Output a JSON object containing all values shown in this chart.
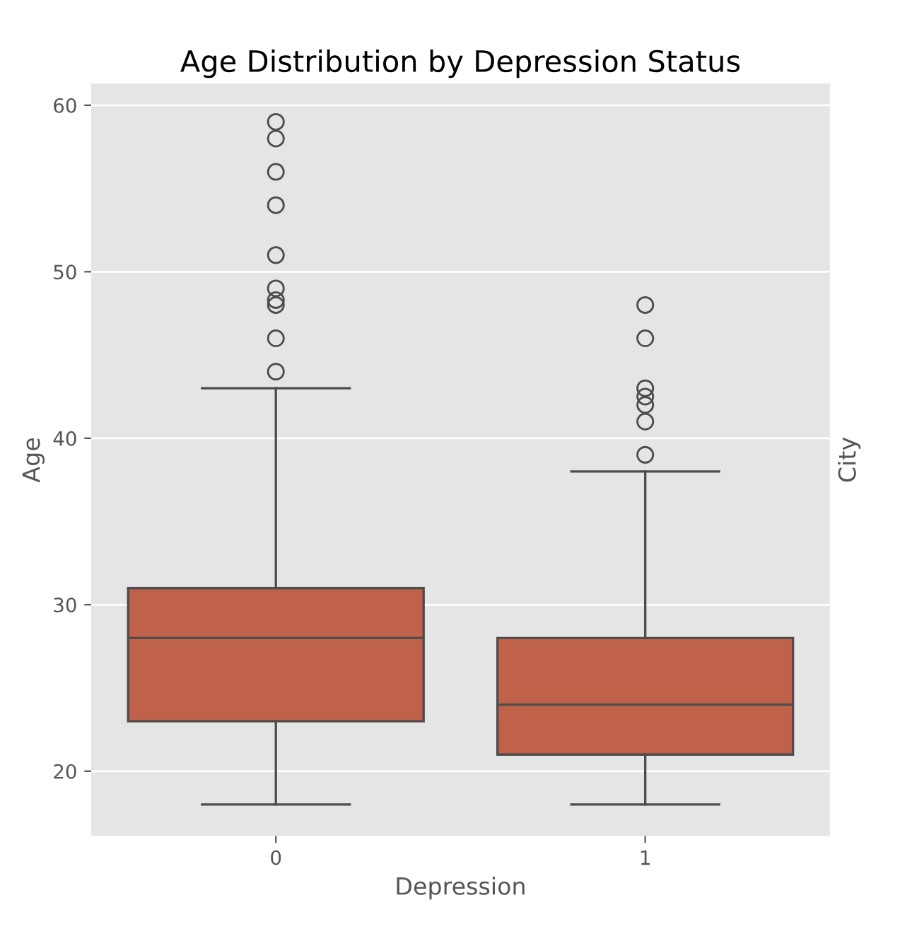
{
  "chart_data": {
    "type": "box",
    "title": "Age Distribution by Depression Status",
    "xlabel": "Depression",
    "ylabel": "Age",
    "y2label": "City",
    "categories": [
      "0",
      "1"
    ],
    "color": "#c0614a",
    "boxes": [
      {
        "low": 18,
        "q1": 23,
        "median": 28,
        "q3": 31,
        "high": 43,
        "outliers": [
          44,
          46,
          48,
          48.3,
          49,
          51,
          54,
          56,
          58,
          59
        ]
      },
      {
        "low": 18,
        "q1": 21,
        "median": 24,
        "q3": 28,
        "high": 38,
        "outliers": [
          39,
          41,
          42,
          42.5,
          43,
          46,
          48
        ]
      }
    ],
    "ylim": [
      16.1,
      61.3
    ],
    "yticks": [
      20,
      30,
      40,
      50,
      60
    ],
    "grid": "y"
  }
}
